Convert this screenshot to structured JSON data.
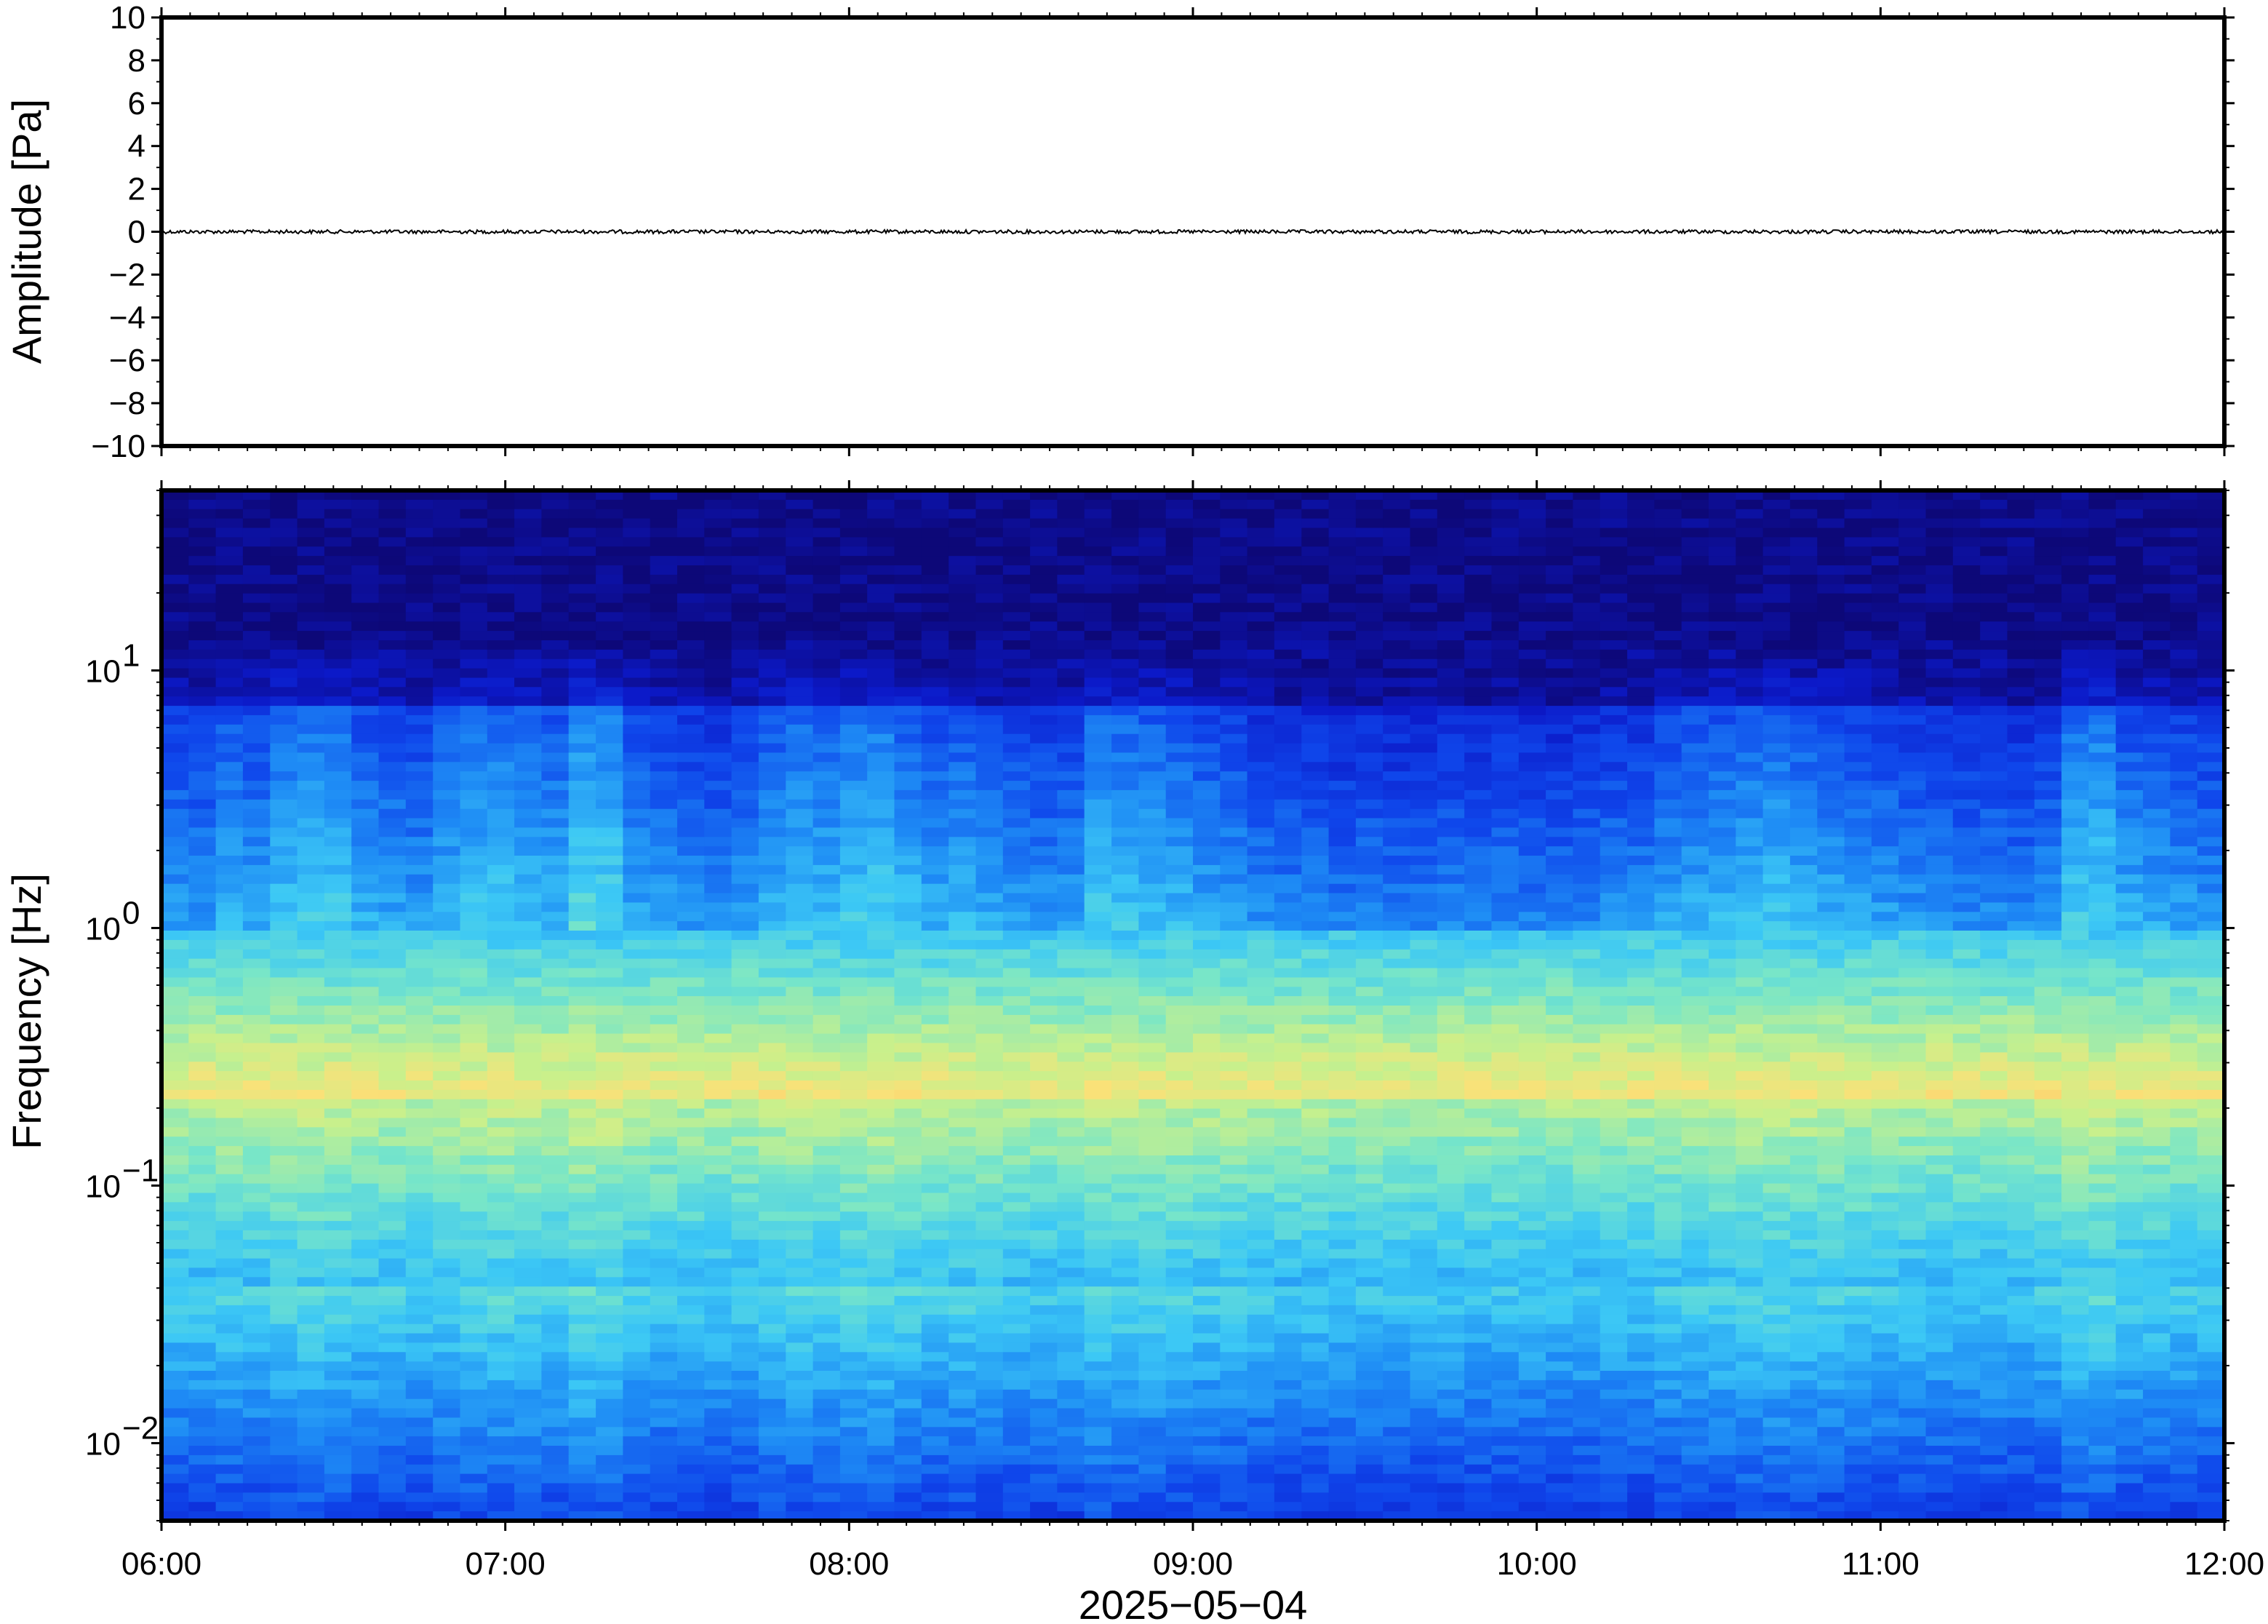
{
  "chart_data": [
    {
      "type": "line",
      "ylabel": "Amplitude [Pa]",
      "ylim": [
        -10,
        10
      ],
      "yticks": [
        -10,
        -8,
        -6,
        -4,
        -2,
        0,
        2,
        4,
        6,
        8,
        10
      ],
      "ytick_labels": [
        "−10",
        "−8",
        "−6",
        "−4",
        "−2",
        "0",
        "2",
        "4",
        "6",
        "8",
        "10"
      ],
      "xlim": [
        "2025-05-04 06:00",
        "2025-05-04 12:00"
      ],
      "series": [
        {
          "x": [
            "06:00",
            "12:00"
          ],
          "values": [
            0,
            0
          ],
          "color": "#000000"
        }
      ],
      "grid": false
    },
    {
      "type": "heatmap",
      "ylabel": "Frequency [Hz]",
      "yscale": "log",
      "ylim": [
        0.005,
        50
      ],
      "yticks": [
        0.01,
        0.1,
        1,
        10
      ],
      "ytick_labels": [
        {
          "base": "10",
          "exp": "−2"
        },
        {
          "base": "10",
          "exp": "−1"
        },
        {
          "base": "10",
          "exp": "0"
        },
        {
          "base": "10",
          "exp": "1"
        }
      ],
      "xlabel": "2025−05−04",
      "xlim": [
        "06:00",
        "12:00"
      ],
      "xtick_labels": [
        "06:00",
        "07:00",
        "08:00",
        "09:00",
        "10:00",
        "11:00",
        "12:00"
      ],
      "colormap": "jet",
      "energy_peak_frequency_hz": 0.22,
      "column_energy": [
        0.3,
        0.25,
        0.45,
        0.35,
        0.55,
        0.65,
        0.6,
        0.4,
        0.35,
        0.3,
        0.45,
        0.55,
        0.6,
        0.5,
        0.45,
        0.75,
        0.7,
        0.35,
        0.3,
        0.25,
        0.2,
        0.3,
        0.45,
        0.55,
        0.5,
        0.6,
        0.65,
        0.5,
        0.4,
        0.45,
        0.35,
        0.3,
        0.25,
        0.3,
        0.6,
        0.55,
        0.5,
        0.45,
        0.35,
        0.3,
        0.2,
        0.15,
        0.15,
        0.1,
        0.15,
        0.1,
        0.1,
        0.15,
        0.1,
        0.15,
        0.1,
        0.1,
        0.15,
        0.2,
        0.2,
        0.35,
        0.4,
        0.45,
        0.5,
        0.55,
        0.45,
        0.4,
        0.35,
        0.3,
        0.25,
        0.2,
        0.15,
        0.2,
        0.15,
        0.25,
        0.6,
        0.65,
        0.4,
        0.35,
        0.3,
        0.25
      ]
    }
  ]
}
